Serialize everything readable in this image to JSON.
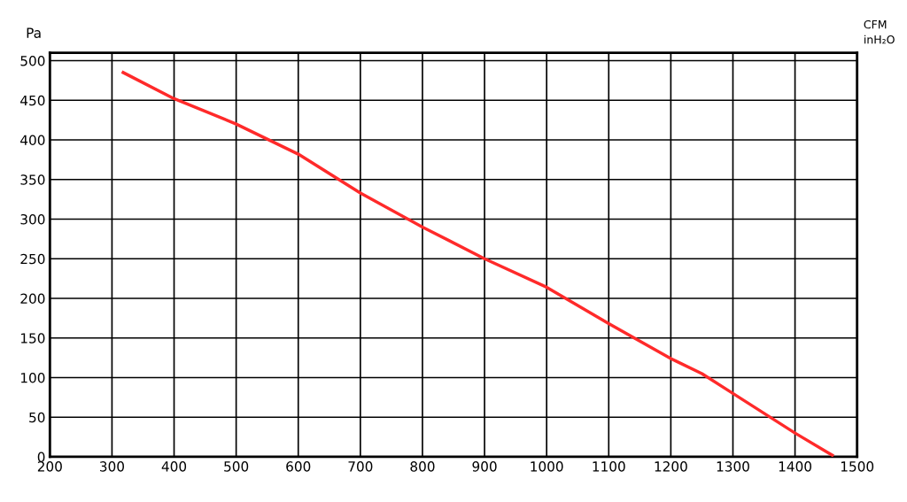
{
  "chart_data": {
    "type": "line",
    "ylabel": "Pa",
    "annotations": [
      "CFM",
      "inH₂O"
    ],
    "x": [
      318,
      400,
      500,
      600,
      700,
      800,
      900,
      1000,
      1100,
      1200,
      1250,
      1300,
      1400,
      1460
    ],
    "series": [
      {
        "color": "#ff2a2a",
        "values": [
          485,
          452,
          420,
          382,
          333,
          290,
          250,
          214,
          168,
          124,
          105,
          80,
          30,
          2
        ]
      }
    ],
    "xlim": [
      200,
      1500
    ],
    "xticks": [
      200,
      300,
      400,
      500,
      600,
      700,
      800,
      900,
      1000,
      1100,
      1200,
      1300,
      1400,
      1500
    ],
    "ylim": [
      0,
      510
    ],
    "yticks": [
      0,
      50,
      100,
      150,
      200,
      250,
      300,
      350,
      400,
      450,
      500
    ],
    "grid": true,
    "marker": "none",
    "line_style": "solid"
  }
}
